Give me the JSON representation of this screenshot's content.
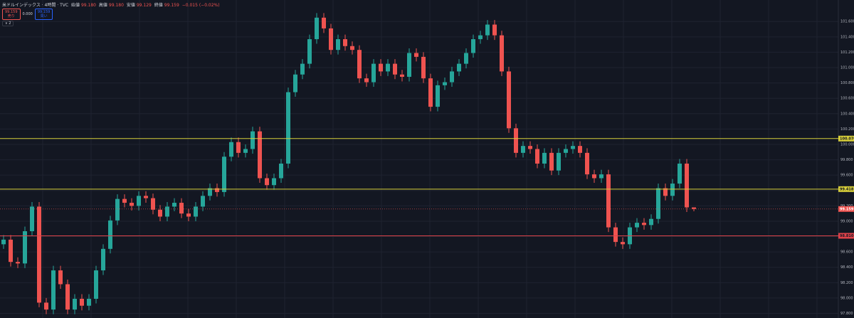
{
  "header": {
    "symbol": "米ドルインデックス · 4時間 · TVC",
    "open_label": "始値",
    "open": "99.180",
    "high_label": "高値",
    "high": "99.180",
    "low_label": "安値",
    "low": "99.129",
    "close_label": "終値",
    "close": "99.159",
    "change": "−0.015 (−0.02%)",
    "sell_price": "99.159",
    "sell_label": "売り",
    "spread": "0.000",
    "buy_price": "99.159",
    "buy_label": "買い",
    "indicator_count": "2"
  },
  "chart_data": {
    "type": "candlestick",
    "up_color": "#26a69a",
    "down_color": "#ef5350",
    "open": [
      98.7,
      98.76,
      98.47,
      98.45,
      98.87,
      99.19,
      97.94,
      97.85,
      98.36,
      98.18,
      97.85,
      97.99,
      97.9,
      97.99,
      98.36,
      98.64,
      99.01,
      99.29,
      99.24,
      99.2,
      99.33,
      99.3,
      99.15,
      99.06,
      99.19,
      99.24,
      99.1,
      99.06,
      99.19,
      99.33,
      99.43,
      99.38,
      99.84,
      100.03,
      99.89,
      99.94,
      100.17,
      99.56,
      99.47,
      99.56,
      99.75,
      100.68,
      100.91,
      101.05,
      101.37,
      101.65,
      101.51,
      101.23,
      101.37,
      101.28,
      101.23,
      100.86,
      100.81,
      101.05,
      100.95,
      101.05,
      100.91,
      100.88,
      101.19,
      101.14,
      100.86,
      100.49,
      100.77,
      100.81,
      100.95,
      101.05,
      101.19,
      101.37,
      101.42,
      101.56,
      101.42,
      100.95,
      100.21,
      99.89,
      99.98,
      99.94,
      99.75,
      99.89,
      99.66,
      99.89,
      99.94,
      99.98,
      99.89,
      99.61,
      99.56,
      99.61,
      98.92,
      98.73,
      98.7,
      98.92,
      98.98,
      98.95,
      99.03,
      99.43,
      99.33,
      99.49,
      99.75,
      99.18
    ],
    "high": [
      98.82,
      98.82,
      98.53,
      98.93,
      99.25,
      99.25,
      98.0,
      98.42,
      98.42,
      98.24,
      98.05,
      98.05,
      98.05,
      98.42,
      98.7,
      99.07,
      99.35,
      99.35,
      99.3,
      99.39,
      99.39,
      99.36,
      99.21,
      99.25,
      99.3,
      99.3,
      99.16,
      99.25,
      99.39,
      99.49,
      99.49,
      99.9,
      100.09,
      100.09,
      100.0,
      100.23,
      100.23,
      99.62,
      99.62,
      99.81,
      100.74,
      100.97,
      101.11,
      101.43,
      101.71,
      101.71,
      101.57,
      101.43,
      101.43,
      101.34,
      101.29,
      100.92,
      101.11,
      101.11,
      101.11,
      101.11,
      100.97,
      101.25,
      101.25,
      101.2,
      100.92,
      100.83,
      100.87,
      101.01,
      101.11,
      101.25,
      101.43,
      101.48,
      101.62,
      101.62,
      101.48,
      101.01,
      100.27,
      100.04,
      100.04,
      100.0,
      99.95,
      99.95,
      99.95,
      100.0,
      100.04,
      100.04,
      99.95,
      99.67,
      99.67,
      99.67,
      98.98,
      98.79,
      98.98,
      99.04,
      99.04,
      99.09,
      99.49,
      99.49,
      99.55,
      99.81,
      99.81,
      99.18
    ],
    "low": [
      98.64,
      98.41,
      98.39,
      98.39,
      98.81,
      97.88,
      97.79,
      97.79,
      98.12,
      97.79,
      97.79,
      97.84,
      97.84,
      97.93,
      98.3,
      98.58,
      98.95,
      99.18,
      99.14,
      99.14,
      99.24,
      99.09,
      99.0,
      99.0,
      99.13,
      99.04,
      99.0,
      99.0,
      99.13,
      99.27,
      99.32,
      99.32,
      99.78,
      99.83,
      99.83,
      99.88,
      99.5,
      99.41,
      99.41,
      99.5,
      99.69,
      100.62,
      100.85,
      100.99,
      101.31,
      101.45,
      101.17,
      101.17,
      101.22,
      101.17,
      100.8,
      100.75,
      100.75,
      100.89,
      100.89,
      100.85,
      100.82,
      100.82,
      101.08,
      100.8,
      100.43,
      100.43,
      100.71,
      100.75,
      100.89,
      100.99,
      101.13,
      101.31,
      101.36,
      101.36,
      100.89,
      100.15,
      99.83,
      99.83,
      99.88,
      99.69,
      99.69,
      99.6,
      99.6,
      99.83,
      99.88,
      99.83,
      99.55,
      99.5,
      99.5,
      98.86,
      98.67,
      98.64,
      98.64,
      98.86,
      98.89,
      98.89,
      98.97,
      99.27,
      99.27,
      99.43,
      99.12,
      99.129
    ],
    "close": [
      98.76,
      98.47,
      98.45,
      98.87,
      99.19,
      97.94,
      97.85,
      98.36,
      98.18,
      97.85,
      97.99,
      97.9,
      97.99,
      98.36,
      98.64,
      99.01,
      99.29,
      99.24,
      99.2,
      99.33,
      99.3,
      99.15,
      99.06,
      99.19,
      99.24,
      99.1,
      99.06,
      99.19,
      99.33,
      99.43,
      99.38,
      99.84,
      100.03,
      99.89,
      99.94,
      100.17,
      99.56,
      99.47,
      99.56,
      99.75,
      100.68,
      100.91,
      101.05,
      101.37,
      101.65,
      101.51,
      101.23,
      101.37,
      101.28,
      101.23,
      100.86,
      100.81,
      101.05,
      100.95,
      101.05,
      100.91,
      100.88,
      101.19,
      101.14,
      100.86,
      100.49,
      100.77,
      100.81,
      100.95,
      101.05,
      101.19,
      101.37,
      101.42,
      101.56,
      101.42,
      100.95,
      100.21,
      99.89,
      99.98,
      99.94,
      99.75,
      99.89,
      99.66,
      99.89,
      99.94,
      99.98,
      99.89,
      99.61,
      99.56,
      99.61,
      98.92,
      98.73,
      98.7,
      98.92,
      98.98,
      98.95,
      99.03,
      99.43,
      99.33,
      99.49,
      99.75,
      99.18,
      99.159
    ],
    "ylim": [
      97.74,
      101.88
    ],
    "yticks": [
      {
        "value": 97.8,
        "label": "97.800"
      },
      {
        "value": 98.0,
        "label": "98.000"
      },
      {
        "value": 98.2,
        "label": "98.200"
      },
      {
        "value": 98.4,
        "label": "98.400"
      },
      {
        "value": 98.6,
        "label": "98.600"
      },
      {
        "value": 98.8,
        "label": "98.800"
      },
      {
        "value": 99.0,
        "label": "99.000"
      },
      {
        "value": 99.2,
        "label": "99.200"
      },
      {
        "value": 99.4,
        "label": "99.400"
      },
      {
        "value": 99.6,
        "label": "99.600"
      },
      {
        "value": 99.8,
        "label": "99.800"
      },
      {
        "value": 100.0,
        "label": "100.000"
      },
      {
        "value": 100.2,
        "label": "100.200"
      },
      {
        "value": 100.4,
        "label": "100.400"
      },
      {
        "value": 100.6,
        "label": "100.600"
      },
      {
        "value": 100.8,
        "label": "100.800"
      },
      {
        "value": 101.0,
        "label": "101.000"
      },
      {
        "value": 101.2,
        "label": "101.200"
      },
      {
        "value": 101.4,
        "label": "101.400"
      },
      {
        "value": 101.6,
        "label": "101.600"
      }
    ],
    "grid": true,
    "hlines": [
      {
        "value": 100.076,
        "label": "100.076",
        "color": "#d8cf3a"
      },
      {
        "value": 99.418,
        "label": "99.418",
        "color": "#d8cf3a"
      },
      {
        "value": 98.81,
        "label": "98.810",
        "color": "#e0424a"
      }
    ]
  }
}
